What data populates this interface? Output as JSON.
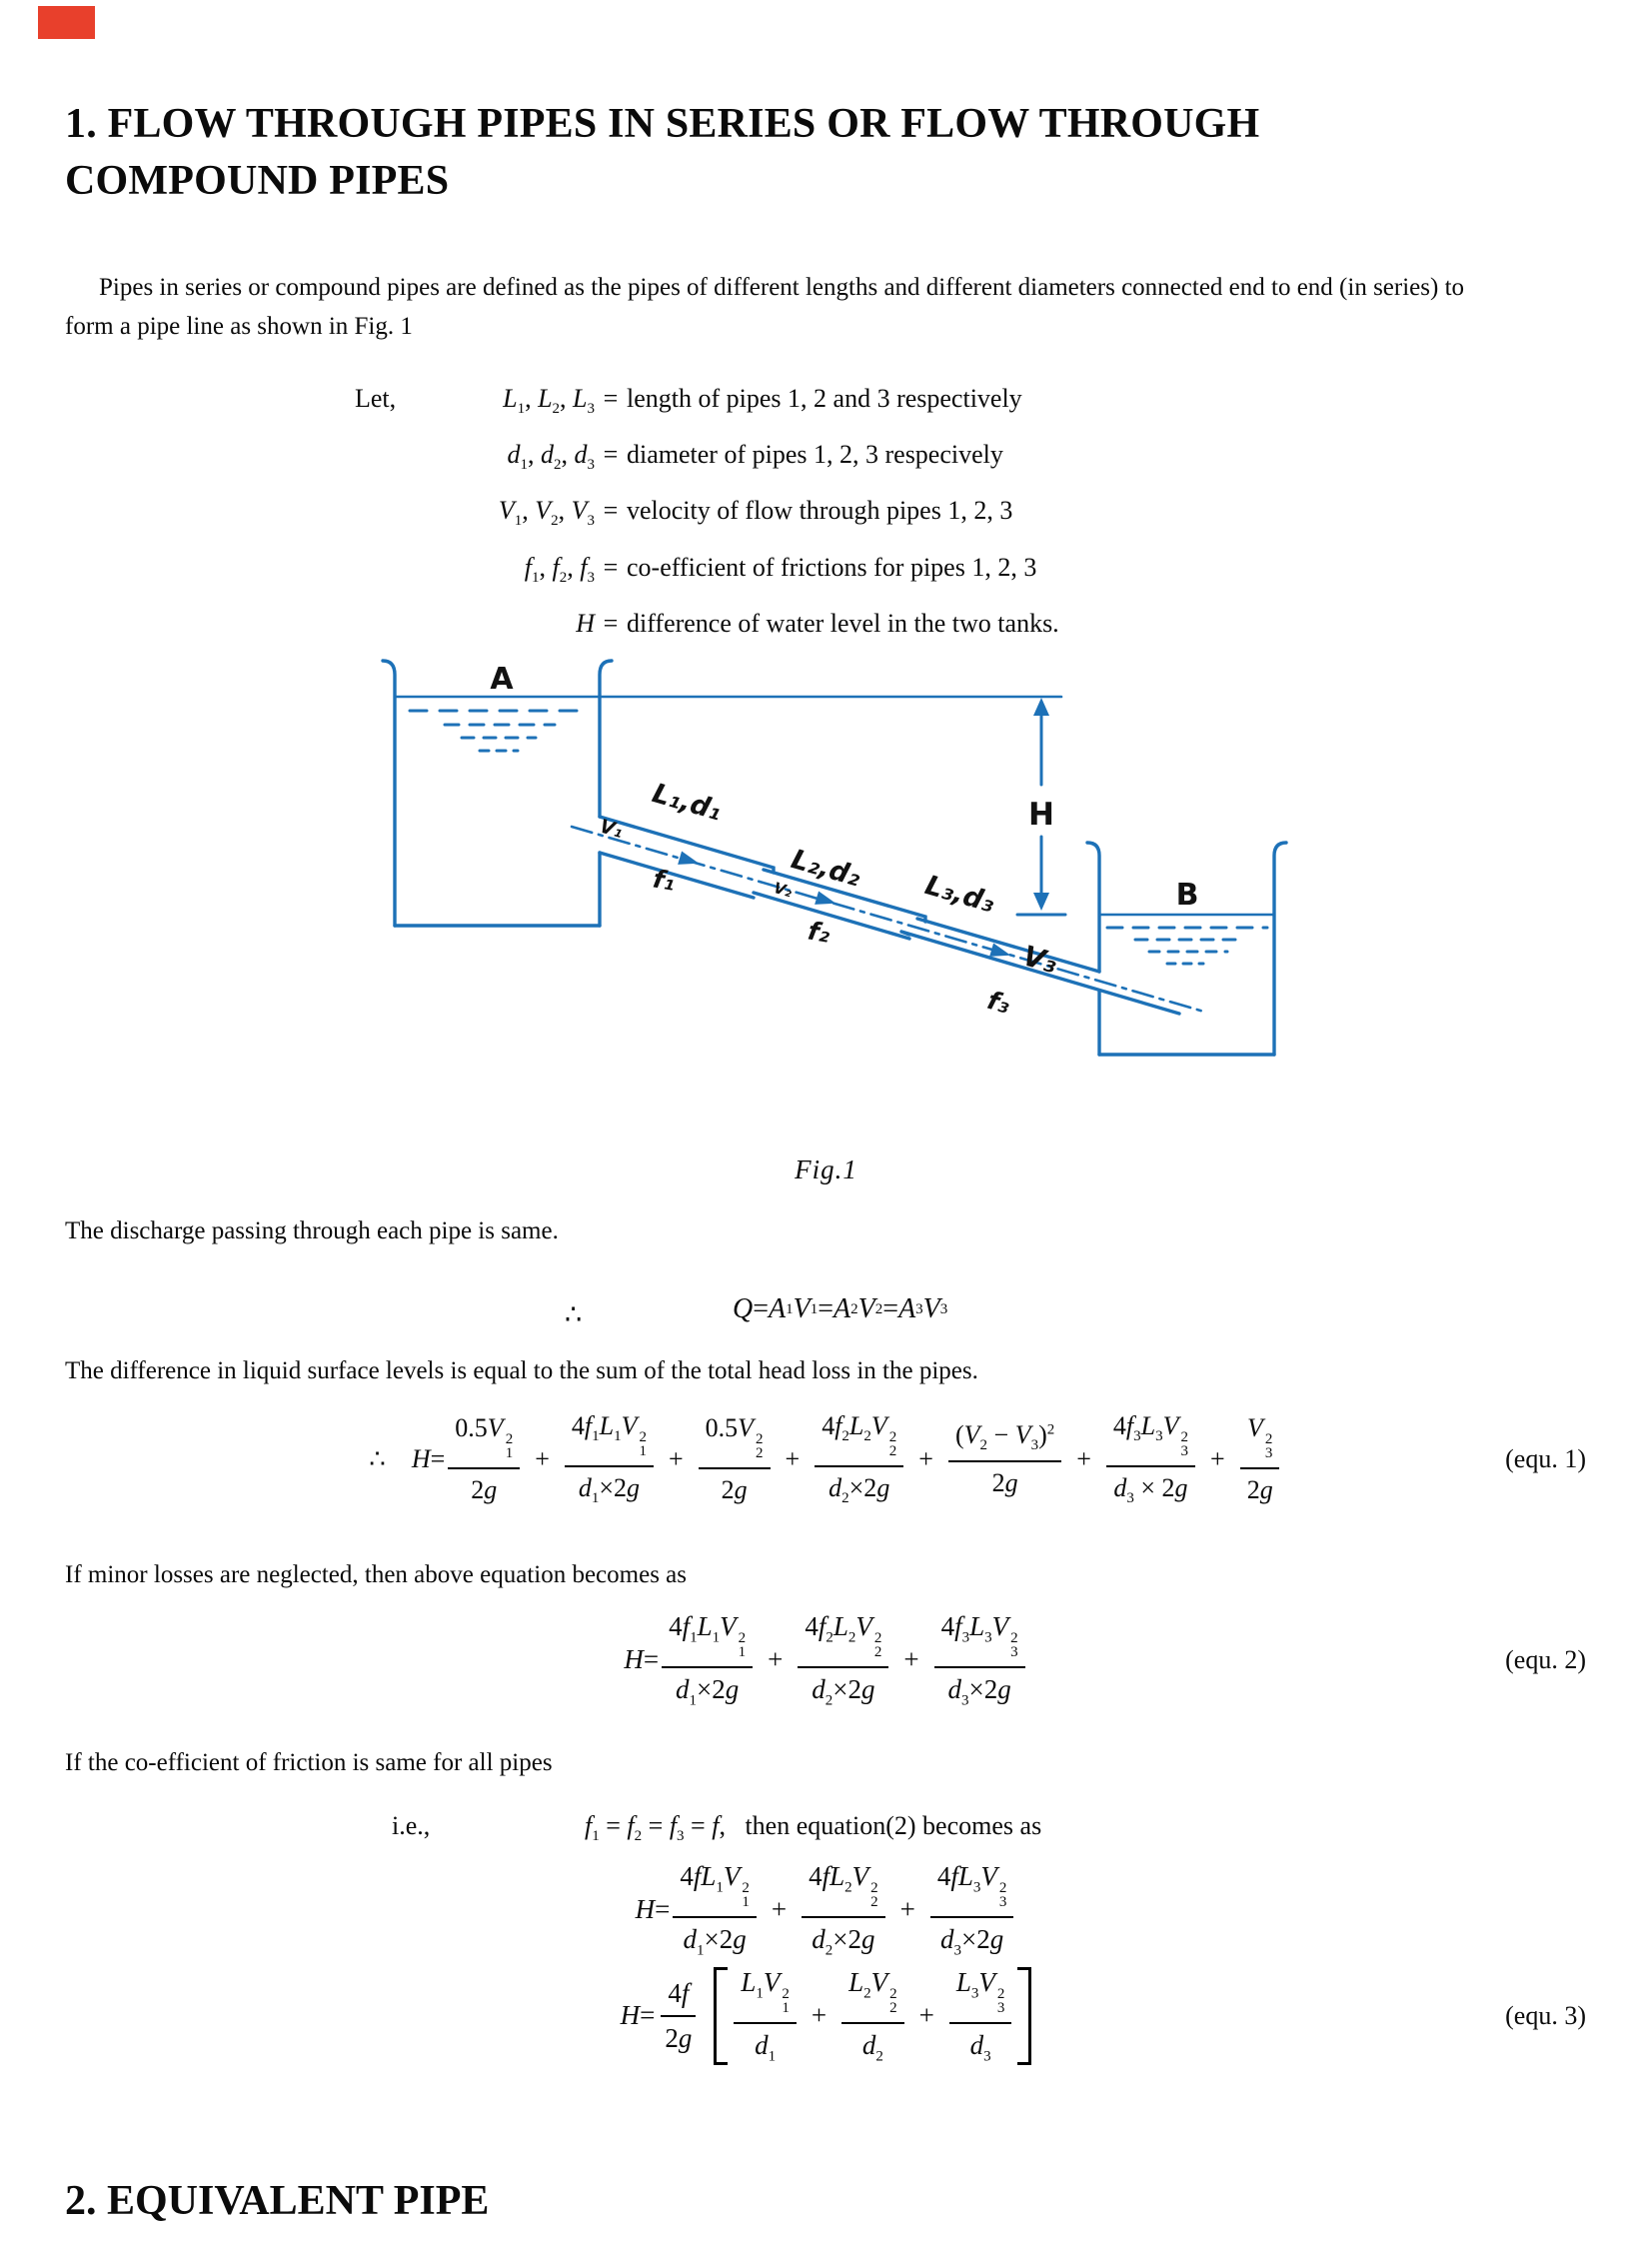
{
  "colors": {
    "diagram_blue": "#1d71b7",
    "marker_red": "#e8402c",
    "text": "#0b0b0b"
  },
  "sections": {
    "heading1": "1. FLOW THROUGH PIPES IN SERIES OR FLOW THROUGH COMPOUND PIPES",
    "heading2": "2. EQUIVALENT PIPE",
    "para_intro": "Pipes in series or compound pipes are defined as the pipes of different lengths and different diameters connected end to end (in series) to form a pipe line as shown in Fig. 1",
    "para_discharge": "The discharge passing through each pipe is same.",
    "para_difference": "The difference in liquid surface levels is equal to the sum of the total head loss in the pipes.",
    "para_minor": "If minor losses are neglected, then above equation becomes as",
    "para_friction": "If the co-efficient of friction is same for all pipes",
    "fig_caption": "Fig.1"
  },
  "definitions": {
    "intro": "Let,",
    "rows": [
      {
        "lhs_html": "<i>L</i><sub>1</sub>, <i>L</i><sub>2</sub>, <i>L</i><sub>3</sub>",
        "eq": "=",
        "rhs": "length of pipes  1, 2 and 3 respectively"
      },
      {
        "lhs_html": "<i>d</i><sub>1</sub>, <i>d</i><sub>2</sub>, <i>d</i><sub>3</sub>",
        "eq": "=",
        "rhs": "diameter of pipes 1, 2, 3 respecively"
      },
      {
        "lhs_html": "<i>V</i><sub>1</sub>, <i>V</i><sub>2</sub>, <i>V</i><sub>3</sub>",
        "eq": "=",
        "rhs": "velocity of flow through pipes 1, 2, 3"
      },
      {
        "lhs_html": "<i>f</i><sub>1</sub>, <i>f</i><sub>2</sub>, <i>f</i><sub>3</sub>",
        "eq": "=",
        "rhs": "co-efficient of frictions for pipes 1, 2, 3"
      },
      {
        "lhs_html": "<i>H</i>",
        "eq": "=",
        "rhs": "difference of water level in the two tanks."
      }
    ]
  },
  "figure": {
    "labels": {
      "tank_a": "A",
      "tank_b": "B",
      "head": "H",
      "pipe1_ld": "L₁,d₁",
      "pipe1_v": "V₁",
      "pipe1_f": "f₁",
      "pipe2_ld": "L₂,d₂",
      "pipe2_v": "V₂",
      "pipe2_f": "f₂",
      "pipe3_ld": "L₃,d₃",
      "pipe3_v": "V₃",
      "pipe3_f": "f₃"
    }
  },
  "equations": {
    "therefore": "∴",
    "discharge_html": "<i>Q</i> = <i>A</i><sub>1</sub><i>V</i><sub>1</sub> = <i>A</i><sub>2</sub><i>V</i><sub>2</sub> = <i>A</i><sub>3</sub><i>V</i><sub>3</sub>",
    "eq1_html": "∴&#8194;&#8194;<i>H</i> = <span class='frac'><span class='num'>0.5<i>V</i><span class='ss'><span>2</span><span>1</span></span></span><span class='den'>2<i>g</i></span></span><span class='op'>+</span><span class='frac'><span class='num'>4<i>f</i><sub>1</sub><i>L</i><sub>1</sub><i>V</i><span class='ss'><span>2</span><span>1</span></span></span><span class='den'><i>d</i><sub>1</sub>×2<i>g</i></span></span><span class='op'>+</span><span class='frac'><span class='num'>0.5<i>V</i><span class='ss'><span>2</span><span>2</span></span></span><span class='den'>2<i>g</i></span></span><span class='op'>+</span><span class='frac'><span class='num'>4<i>f</i><sub>2</sub><i>L</i><sub>2</sub><i>V</i><span class='ss'><span>2</span><span>2</span></span></span><span class='den'><i>d</i><sub>2</sub>×2<i>g</i></span></span><span class='op'>+</span><span class='frac'><span class='num'>(<i>V</i><sub>2</sub> − <i>V</i><sub>3</sub>)<sup>2</sup></span><span class='den'>2<i>g</i></span></span><span class='op'>+</span><span class='frac'><span class='num'>4<i>f</i><sub>3</sub><i>L</i><sub>3</sub><i>V</i><span class='ss'><span>2</span><span>3</span></span></span><span class='den'><i>d</i><sub>3</sub> × 2<i>g</i></span></span><span class='op'>+</span><span class='frac'><span class='num'><i>V</i><span class='ss'><span>2</span><span>3</span></span></span><span class='den'>2<i>g</i></span></span>",
    "eq1_label": "(equ. 1)",
    "eq2_html": "<i>H</i> = <span class='frac'><span class='num'>4<i>f</i><sub>1</sub><i>L</i><sub>1</sub><i>V</i><span class='ss'><span>2</span><span>1</span></span></span><span class='den'><i>d</i><sub>1</sub>×2<i>g</i></span></span><span class='op'>+</span><span class='frac'><span class='num'>4<i>f</i><sub>2</sub><i>L</i><sub>2</sub><i>V</i><span class='ss'><span>2</span><span>2</span></span></span><span class='den'><i>d</i><sub>2</sub>×2<i>g</i></span></span><span class='op'>+</span><span class='frac'><span class='num'>4<i>f</i><sub>3</sub><i>L</i><sub>3</sub><i>V</i><span class='ss'><span>2</span><span>3</span></span></span><span class='den'><i>d</i><sub>3</sub>×2<i>g</i></span></span>",
    "eq2_label": "(equ. 2)",
    "ie": "i.e.,",
    "ie_eq_html": "<i>f</i><sub>1</sub> = <i>f</i><sub>2</sub> = <i>f</i><sub>3</sub> = <i>f</i>,&#8194; then equation(2) becomes as",
    "eq3a_html": "<i>H</i> = <span class='frac'><span class='num'>4<i>fL</i><sub>1</sub><i>V</i><span class='ss'><span>2</span><span>1</span></span></span><span class='den'><i>d</i><sub>1</sub>×2<i>g</i></span></span><span class='op'>+</span><span class='frac'><span class='num'>4<i>fL</i><sub>2</sub><i>V</i><span class='ss'><span>2</span><span>2</span></span></span><span class='den'><i>d</i><sub>2</sub>×2<i>g</i></span></span><span class='op'>+</span><span class='frac'><span class='num'>4<i>fL</i><sub>3</sub><i>V</i><span class='ss'><span>2</span><span>3</span></span></span><span class='den'><i>d</i><sub>3</sub>×2<i>g</i></span></span>",
    "eq3_html": "<i>H</i> = <span class='frac'><span class='num'>4<i>f</i></span><span class='den'>2<i>g</i></span></span><span class='sqb lb'></span><span class='frac'><span class='num'><i>L</i><sub>1</sub><i>V</i><span class='ss'><span>2</span><span>1</span></span></span><span class='den'><i>d</i><sub>1</sub></span></span><span class='op'>+</span><span class='frac'><span class='num'><i>L</i><sub>2</sub><i>V</i><span class='ss'><span>2</span><span>2</span></span></span><span class='den'><i>d</i><sub>2</sub></span></span><span class='op'>+</span><span class='frac'><span class='num'><i>L</i><sub>3</sub><i>V</i><span class='ss'><span>2</span><span>3</span></span></span><span class='den'><i>d</i><sub>3</sub></span></span><span class='sqb rb'></span>",
    "eq3_label": "(equ. 3)"
  }
}
